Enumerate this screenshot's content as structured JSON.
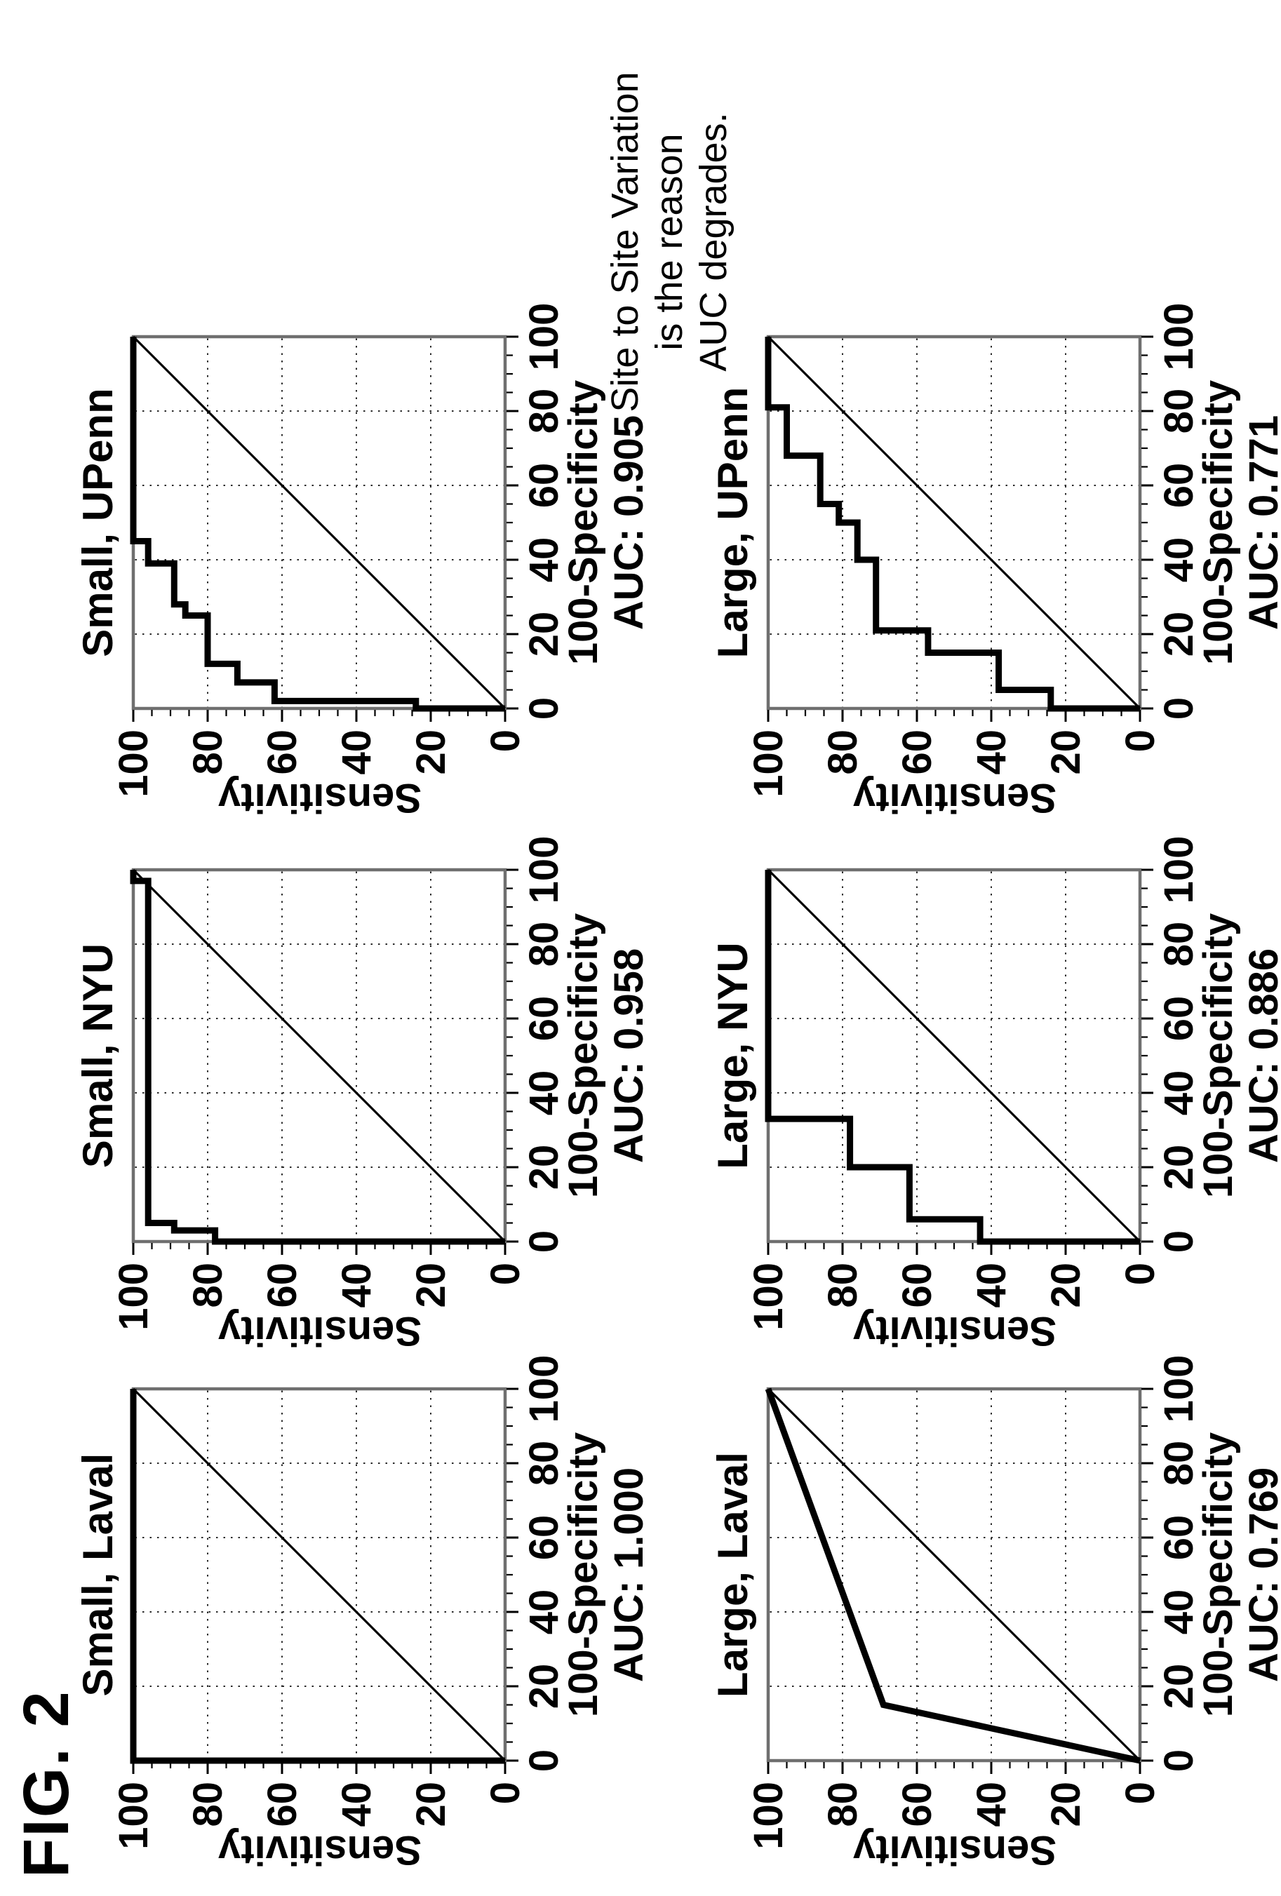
{
  "figure": {
    "label": "FIG. 2"
  },
  "caption": {
    "lines": [
      "Site to Site Variation",
      "is the reason",
      "AUC degrades."
    ]
  },
  "axes": {
    "xlabel": "100-Specificity",
    "ylabel": "Sensitivity",
    "x_range": [
      0,
      100
    ],
    "y_range": [
      0,
      100
    ],
    "tick_labels": [
      "0",
      "20",
      "40",
      "60",
      "80",
      "100"
    ],
    "tick_values": [
      0,
      20,
      40,
      60,
      80,
      100
    ],
    "minor_tick_step": 5,
    "grid": "dotted, every 20 units, diagonal reference line drawn"
  },
  "chart_data": [
    {
      "type": "line",
      "id": "small-laval",
      "title": "Small, Laval",
      "cohort": "Small",
      "site": "Laval",
      "auc": 1.0,
      "auc_label": "AUC: 1.000",
      "xlabel": "100-Specificity",
      "ylabel": "Sensitivity",
      "xlim": [
        0,
        100
      ],
      "ylim": [
        0,
        100
      ],
      "points": [
        [
          0,
          0
        ],
        [
          0,
          100
        ],
        [
          100,
          100
        ]
      ]
    },
    {
      "type": "line",
      "id": "small-nyu",
      "title": "Small, NYU",
      "cohort": "Small",
      "site": "NYU",
      "auc": 0.958,
      "auc_label": "AUC: 0.958",
      "xlabel": "100-Specificity",
      "ylabel": "Sensitivity",
      "xlim": [
        0,
        100
      ],
      "ylim": [
        0,
        100
      ],
      "points": [
        [
          0,
          0
        ],
        [
          0,
          78
        ],
        [
          3,
          78
        ],
        [
          3,
          89
        ],
        [
          5,
          89
        ],
        [
          5,
          96
        ],
        [
          97,
          96
        ],
        [
          97,
          100
        ],
        [
          100,
          100
        ]
      ]
    },
    {
      "type": "line",
      "id": "small-upenn",
      "title": "Small, UPenn",
      "cohort": "Small",
      "site": "UPenn",
      "auc": 0.905,
      "auc_label": "AUC: 0.905",
      "xlabel": "100-Specificity",
      "ylabel": "Sensitivity",
      "xlim": [
        0,
        100
      ],
      "ylim": [
        0,
        100
      ],
      "points": [
        [
          0,
          0
        ],
        [
          0,
          24
        ],
        [
          2,
          24
        ],
        [
          2,
          62
        ],
        [
          7,
          62
        ],
        [
          7,
          72
        ],
        [
          12,
          72
        ],
        [
          12,
          80
        ],
        [
          25,
          80
        ],
        [
          25,
          86
        ],
        [
          28,
          86
        ],
        [
          28,
          89
        ],
        [
          39,
          89
        ],
        [
          39,
          96
        ],
        [
          45,
          96
        ],
        [
          45,
          100
        ],
        [
          100,
          100
        ]
      ]
    },
    {
      "type": "line",
      "id": "large-laval",
      "title": "Large, Laval",
      "cohort": "Large",
      "site": "Laval",
      "auc": 0.769,
      "auc_label": "AUC: 0.769",
      "xlabel": "100-Specificity",
      "ylabel": "Sensitivity",
      "xlim": [
        0,
        100
      ],
      "ylim": [
        0,
        100
      ],
      "points": [
        [
          0,
          0
        ],
        [
          15,
          69
        ],
        [
          100,
          100
        ]
      ]
    },
    {
      "type": "line",
      "id": "large-nyu",
      "title": "Large, NYU",
      "cohort": "Large",
      "site": "NYU",
      "auc": 0.886,
      "auc_label": "AUC: 0.886",
      "xlabel": "100-Specificity",
      "ylabel": "Sensitivity",
      "xlim": [
        0,
        100
      ],
      "ylim": [
        0,
        100
      ],
      "points": [
        [
          0,
          0
        ],
        [
          0,
          43
        ],
        [
          6,
          43
        ],
        [
          6,
          62
        ],
        [
          20,
          62
        ],
        [
          20,
          78
        ],
        [
          33,
          78
        ],
        [
          33,
          100
        ],
        [
          100,
          100
        ]
      ]
    },
    {
      "type": "line",
      "id": "large-upenn",
      "title": "Large, UPenn",
      "cohort": "Large",
      "site": "UPenn",
      "auc": 0.771,
      "auc_label": "AUC: 0.771",
      "xlabel": "100-Specificity",
      "ylabel": "Sensitivity",
      "xlim": [
        0,
        100
      ],
      "ylim": [
        0,
        100
      ],
      "points": [
        [
          0,
          0
        ],
        [
          0,
          24
        ],
        [
          5,
          24
        ],
        [
          5,
          38
        ],
        [
          15,
          38
        ],
        [
          15,
          57
        ],
        [
          21,
          57
        ],
        [
          21,
          71
        ],
        [
          40,
          71
        ],
        [
          40,
          76
        ],
        [
          50,
          76
        ],
        [
          50,
          81
        ],
        [
          55,
          81
        ],
        [
          55,
          86
        ],
        [
          68,
          86
        ],
        [
          68,
          95
        ],
        [
          81,
          95
        ],
        [
          81,
          100
        ],
        [
          100,
          100
        ]
      ]
    }
  ],
  "colors": {
    "ink": "#000000",
    "frame": "#6f6f6f",
    "grid": "#2b2b2b",
    "background": "#ffffff"
  }
}
